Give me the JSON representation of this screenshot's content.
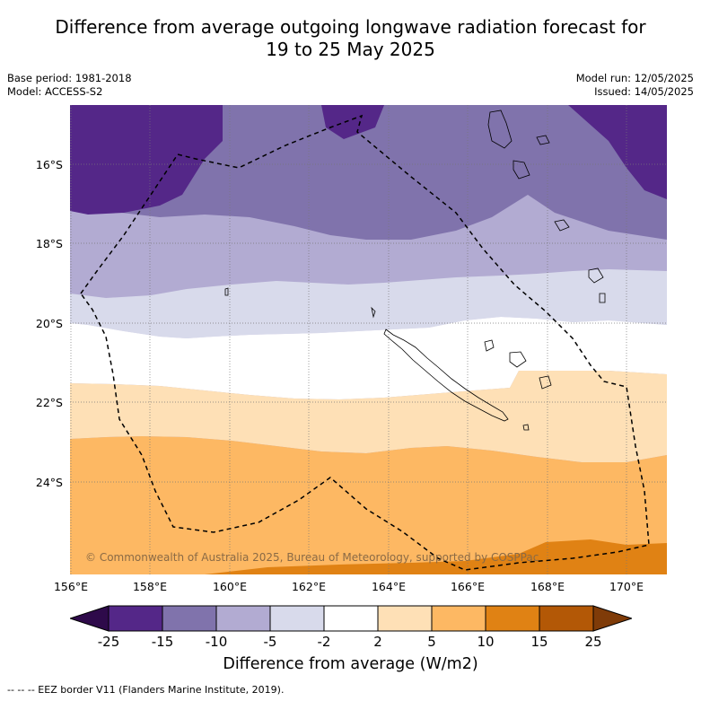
{
  "title_line1": "Difference from average outgoing longwave radiation forecast for",
  "title_line2": "19 to 25 May 2025",
  "meta_left": {
    "base_period": "Base period: 1981-2018",
    "model": "Model: ACCESS-S2"
  },
  "meta_right": {
    "model_run": "Model run: 12/05/2025",
    "issued": "Issued: 14/05/2025"
  },
  "lat_labels": [
    "16°S",
    "18°S",
    "20°S",
    "22°S",
    "24°S"
  ],
  "lon_labels": [
    "156°E",
    "158°E",
    "160°E",
    "162°E",
    "164°E",
    "166°E",
    "168°E",
    "170°E"
  ],
  "copyright": "© Commonwealth of Australia 2025, Bureau of Meteorology, supported by COSPPac",
  "colorbar": {
    "ticks": [
      "-25",
      "-15",
      "-10",
      "-5",
      "-2",
      "2",
      "5",
      "10",
      "15",
      "25"
    ],
    "colors": [
      "#2e0a4a",
      "#542788",
      "#8073ac",
      "#b2abd2",
      "#d8daeb",
      "#ffffff",
      "#fee0b6",
      "#fdb863",
      "#e08214",
      "#b35806",
      "#7f3b08"
    ],
    "title": "Difference from average (W/m2)"
  },
  "footnote": "--  --  -- EEZ border V11 (Flanders Marine Institute, 2019)."
}
